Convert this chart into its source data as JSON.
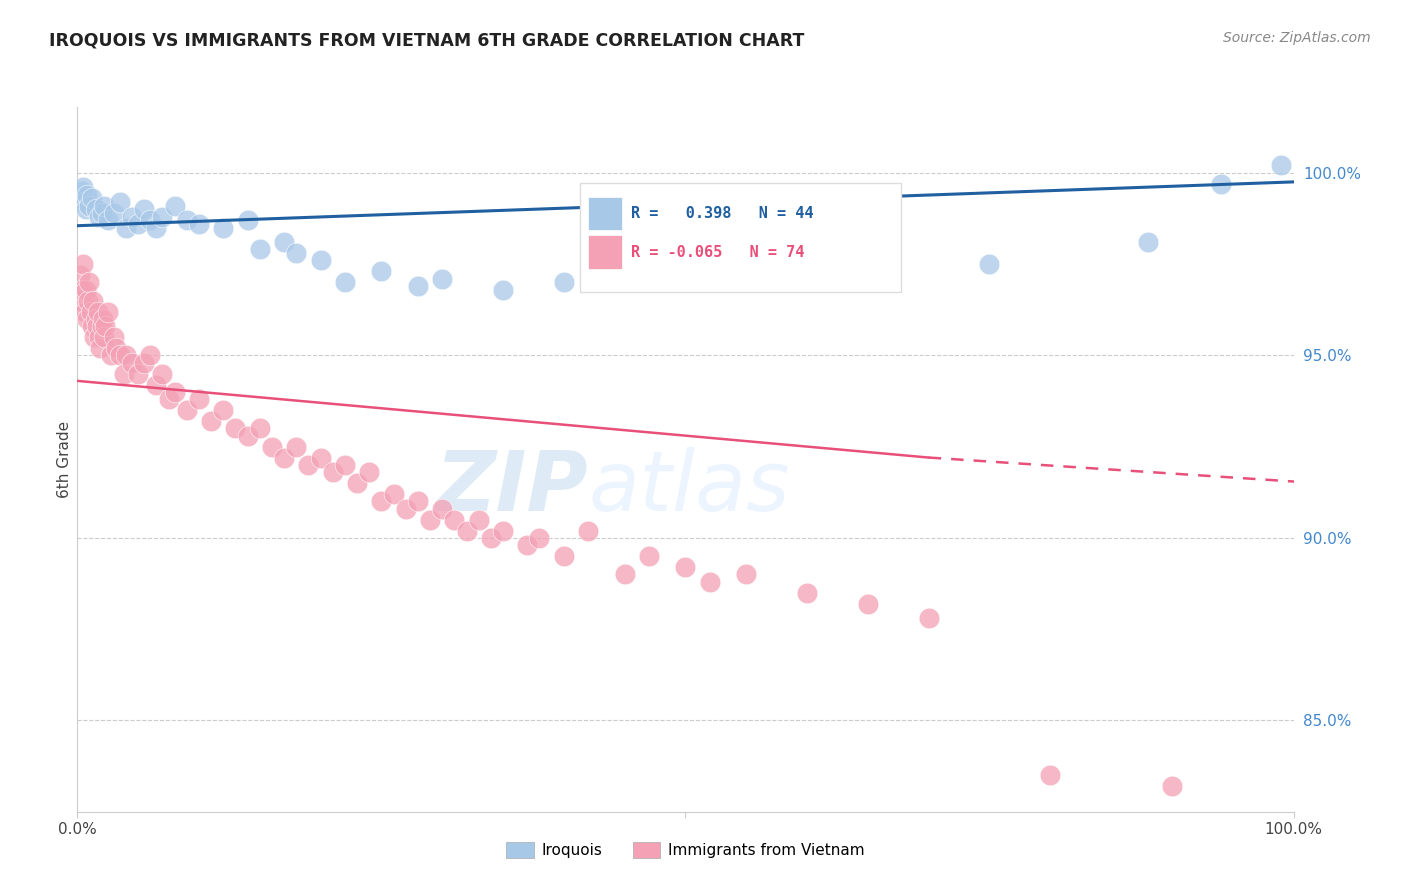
{
  "title": "IROQUOIS VS IMMIGRANTS FROM VIETNAM 6TH GRADE CORRELATION CHART",
  "source": "Source: ZipAtlas.com",
  "ylabel": "6th Grade",
  "right_yticks": [
    85.0,
    90.0,
    95.0,
    100.0
  ],
  "xlim": [
    0.0,
    100.0
  ],
  "ylim": [
    82.5,
    101.8
  ],
  "blue_color": "#a8c8e8",
  "pink_color": "#f4a0b5",
  "trendline_blue": "#2060a0",
  "trendline_pink": "#e8507a",
  "watermark_zip": "ZIP",
  "watermark_atlas": "atlas",
  "iroquois_scatter": [
    [
      0.3,
      99.3
    ],
    [
      0.4,
      99.5
    ],
    [
      0.5,
      99.6
    ],
    [
      0.6,
      99.2
    ],
    [
      0.7,
      99.0
    ],
    [
      0.8,
      99.4
    ],
    [
      1.0,
      99.1
    ],
    [
      1.2,
      99.3
    ],
    [
      1.5,
      99.0
    ],
    [
      1.8,
      98.8
    ],
    [
      2.0,
      98.9
    ],
    [
      2.2,
      99.1
    ],
    [
      2.5,
      98.7
    ],
    [
      3.0,
      98.9
    ],
    [
      3.5,
      99.2
    ],
    [
      4.0,
      98.5
    ],
    [
      4.5,
      98.8
    ],
    [
      5.0,
      98.6
    ],
    [
      5.5,
      99.0
    ],
    [
      6.0,
      98.7
    ],
    [
      6.5,
      98.5
    ],
    [
      7.0,
      98.8
    ],
    [
      8.0,
      99.1
    ],
    [
      9.0,
      98.7
    ],
    [
      10.0,
      98.6
    ],
    [
      12.0,
      98.5
    ],
    [
      14.0,
      98.7
    ],
    [
      15.0,
      97.9
    ],
    [
      17.0,
      98.1
    ],
    [
      18.0,
      97.8
    ],
    [
      20.0,
      97.6
    ],
    [
      22.0,
      97.0
    ],
    [
      25.0,
      97.3
    ],
    [
      28.0,
      96.9
    ],
    [
      30.0,
      97.1
    ],
    [
      35.0,
      96.8
    ],
    [
      40.0,
      97.0
    ],
    [
      45.0,
      97.1
    ],
    [
      55.0,
      97.3
    ],
    [
      65.0,
      97.0
    ],
    [
      75.0,
      97.5
    ],
    [
      88.0,
      98.1
    ],
    [
      94.0,
      99.7
    ],
    [
      99.0,
      100.2
    ]
  ],
  "vietnam_scatter": [
    [
      0.2,
      97.2
    ],
    [
      0.3,
      96.5
    ],
    [
      0.4,
      96.8
    ],
    [
      0.5,
      97.5
    ],
    [
      0.6,
      96.2
    ],
    [
      0.7,
      96.8
    ],
    [
      0.8,
      96.0
    ],
    [
      0.9,
      96.5
    ],
    [
      1.0,
      97.0
    ],
    [
      1.1,
      96.2
    ],
    [
      1.2,
      95.8
    ],
    [
      1.3,
      96.5
    ],
    [
      1.4,
      95.5
    ],
    [
      1.5,
      96.0
    ],
    [
      1.6,
      95.8
    ],
    [
      1.7,
      96.2
    ],
    [
      1.8,
      95.5
    ],
    [
      1.9,
      95.2
    ],
    [
      2.0,
      95.8
    ],
    [
      2.1,
      96.0
    ],
    [
      2.2,
      95.5
    ],
    [
      2.3,
      95.8
    ],
    [
      2.5,
      96.2
    ],
    [
      2.8,
      95.0
    ],
    [
      3.0,
      95.5
    ],
    [
      3.2,
      95.2
    ],
    [
      3.5,
      95.0
    ],
    [
      3.8,
      94.5
    ],
    [
      4.0,
      95.0
    ],
    [
      4.5,
      94.8
    ],
    [
      5.0,
      94.5
    ],
    [
      5.5,
      94.8
    ],
    [
      6.0,
      95.0
    ],
    [
      6.5,
      94.2
    ],
    [
      7.0,
      94.5
    ],
    [
      7.5,
      93.8
    ],
    [
      8.0,
      94.0
    ],
    [
      9.0,
      93.5
    ],
    [
      10.0,
      93.8
    ],
    [
      11.0,
      93.2
    ],
    [
      12.0,
      93.5
    ],
    [
      13.0,
      93.0
    ],
    [
      14.0,
      92.8
    ],
    [
      15.0,
      93.0
    ],
    [
      16.0,
      92.5
    ],
    [
      17.0,
      92.2
    ],
    [
      18.0,
      92.5
    ],
    [
      19.0,
      92.0
    ],
    [
      20.0,
      92.2
    ],
    [
      21.0,
      91.8
    ],
    [
      22.0,
      92.0
    ],
    [
      23.0,
      91.5
    ],
    [
      24.0,
      91.8
    ],
    [
      25.0,
      91.0
    ],
    [
      26.0,
      91.2
    ],
    [
      27.0,
      90.8
    ],
    [
      28.0,
      91.0
    ],
    [
      29.0,
      90.5
    ],
    [
      30.0,
      90.8
    ],
    [
      31.0,
      90.5
    ],
    [
      32.0,
      90.2
    ],
    [
      33.0,
      90.5
    ],
    [
      34.0,
      90.0
    ],
    [
      35.0,
      90.2
    ],
    [
      37.0,
      89.8
    ],
    [
      38.0,
      90.0
    ],
    [
      40.0,
      89.5
    ],
    [
      42.0,
      90.2
    ],
    [
      45.0,
      89.0
    ],
    [
      47.0,
      89.5
    ],
    [
      50.0,
      89.2
    ],
    [
      52.0,
      88.8
    ],
    [
      55.0,
      89.0
    ],
    [
      60.0,
      88.5
    ],
    [
      65.0,
      88.2
    ],
    [
      70.0,
      87.8
    ],
    [
      80.0,
      83.5
    ],
    [
      90.0,
      83.2
    ]
  ]
}
